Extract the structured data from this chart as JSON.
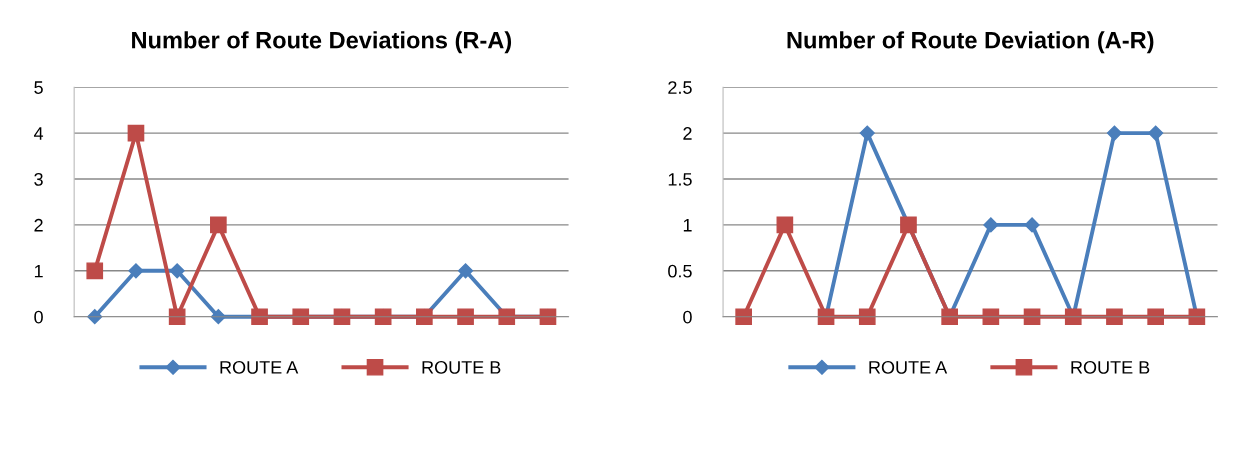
{
  "chart_data": [
    {
      "type": "line",
      "title": "Number of Route Deviations (R-A)",
      "categories": [
        null,
        null,
        null,
        null,
        null,
        null,
        null,
        null,
        null,
        null,
        null,
        null
      ],
      "ylim": [
        0,
        5
      ],
      "yticks": [
        0,
        1,
        2,
        3,
        4,
        5
      ],
      "grid": "y",
      "legend": "bottom",
      "tick_labels": "y",
      "series": [
        {
          "name": "ROUTE A",
          "color": "#4a7ebb",
          "marker": "diamond",
          "values": [
            0,
            1,
            1,
            0,
            0,
            0,
            0,
            0,
            0,
            1,
            0,
            0
          ]
        },
        {
          "name": "ROUTE B",
          "color": "#be4b48",
          "marker": "square",
          "values": [
            1,
            4,
            0,
            2,
            0,
            0,
            0,
            0,
            0,
            0,
            0,
            0
          ]
        }
      ]
    },
    {
      "type": "line",
      "title": "Number of Route Deviation (A-R)",
      "categories": [
        null,
        null,
        null,
        null,
        null,
        null,
        null,
        null,
        null,
        null,
        null,
        null
      ],
      "ylim": [
        0,
        2.5
      ],
      "yticks": [
        0,
        0.5,
        1,
        1.5,
        2,
        2.5
      ],
      "grid": "y",
      "legend": "bottom",
      "tick_labels": "y",
      "series": [
        {
          "name": "ROUTE A",
          "color": "#4a7ebb",
          "marker": "diamond",
          "values": [
            null,
            null,
            0,
            2,
            1,
            0,
            1,
            1,
            0,
            2,
            2,
            0
          ]
        },
        {
          "name": "ROUTE B",
          "color": "#be4b48",
          "marker": "square",
          "values": [
            0,
            1,
            0,
            0,
            1,
            0,
            0,
            0,
            0,
            0,
            0,
            0
          ]
        }
      ]
    }
  ]
}
